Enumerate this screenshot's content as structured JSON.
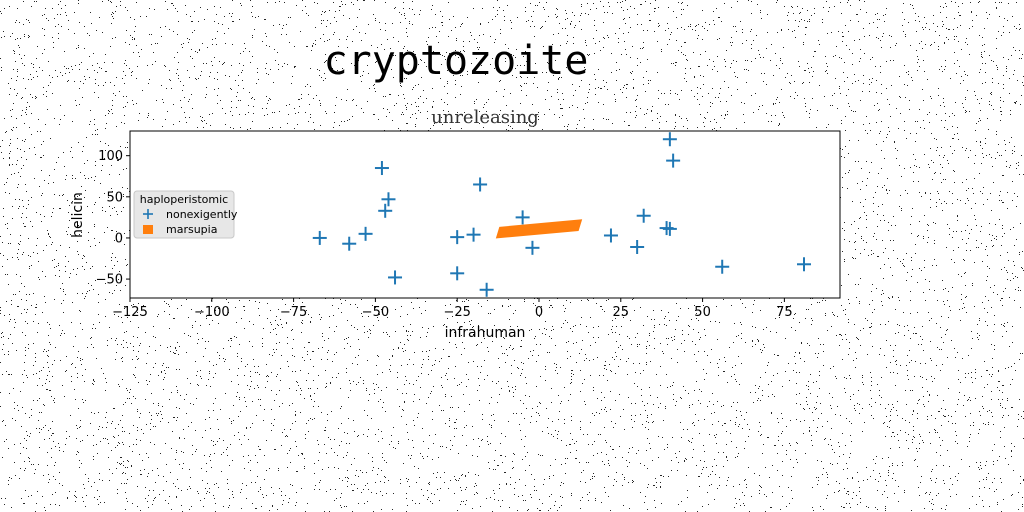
{
  "figure": {
    "title": "cryptozoite"
  },
  "chart_data": {
    "type": "scatter",
    "title": "unreleasing",
    "xlabel": "infrahuman",
    "ylabel": "helicin",
    "xlim": [
      -125,
      92
    ],
    "ylim": [
      -73,
      130
    ],
    "xticks": [
      -125,
      -100,
      -75,
      -50,
      -25,
      0,
      25,
      50,
      75
    ],
    "xtick_labels": [
      "−125",
      "−100",
      "−75",
      "−50",
      "−25",
      "0",
      "25",
      "50",
      "75"
    ],
    "yticks": [
      -50,
      0,
      50,
      100
    ],
    "ytick_labels": [
      "−50",
      "0",
      "50",
      "100"
    ],
    "grid": false,
    "legend": {
      "title": "haploperistomic",
      "placement": "left",
      "entries": [
        "nonexigently",
        "marsupia"
      ]
    },
    "series": [
      {
        "name": "nonexigently",
        "marker": "plus",
        "color": "#1f77b4",
        "points": [
          [
            40,
            120
          ],
          [
            41,
            94
          ],
          [
            -48,
            85
          ],
          [
            -18,
            65
          ],
          [
            -46,
            47
          ],
          [
            -47,
            33
          ],
          [
            -5,
            25
          ],
          [
            32,
            27
          ],
          [
            39,
            12
          ],
          [
            40,
            11
          ],
          [
            -53,
            5
          ],
          [
            -20,
            4
          ],
          [
            22,
            3
          ],
          [
            -25,
            1
          ],
          [
            -67,
            0
          ],
          [
            -58,
            -7
          ],
          [
            30,
            -11
          ],
          [
            -2,
            -12
          ],
          [
            56,
            -35
          ],
          [
            81,
            -32
          ],
          [
            -25,
            -43
          ],
          [
            -44,
            -48
          ],
          [
            -16,
            -63
          ]
        ]
      },
      {
        "name": "marsupia",
        "marker": "polygon",
        "color": "#ff7f0e",
        "polygon": [
          [
            -13,
            0
          ],
          [
            12,
            9
          ],
          [
            13,
            22
          ],
          [
            -12,
            13
          ]
        ]
      }
    ]
  }
}
